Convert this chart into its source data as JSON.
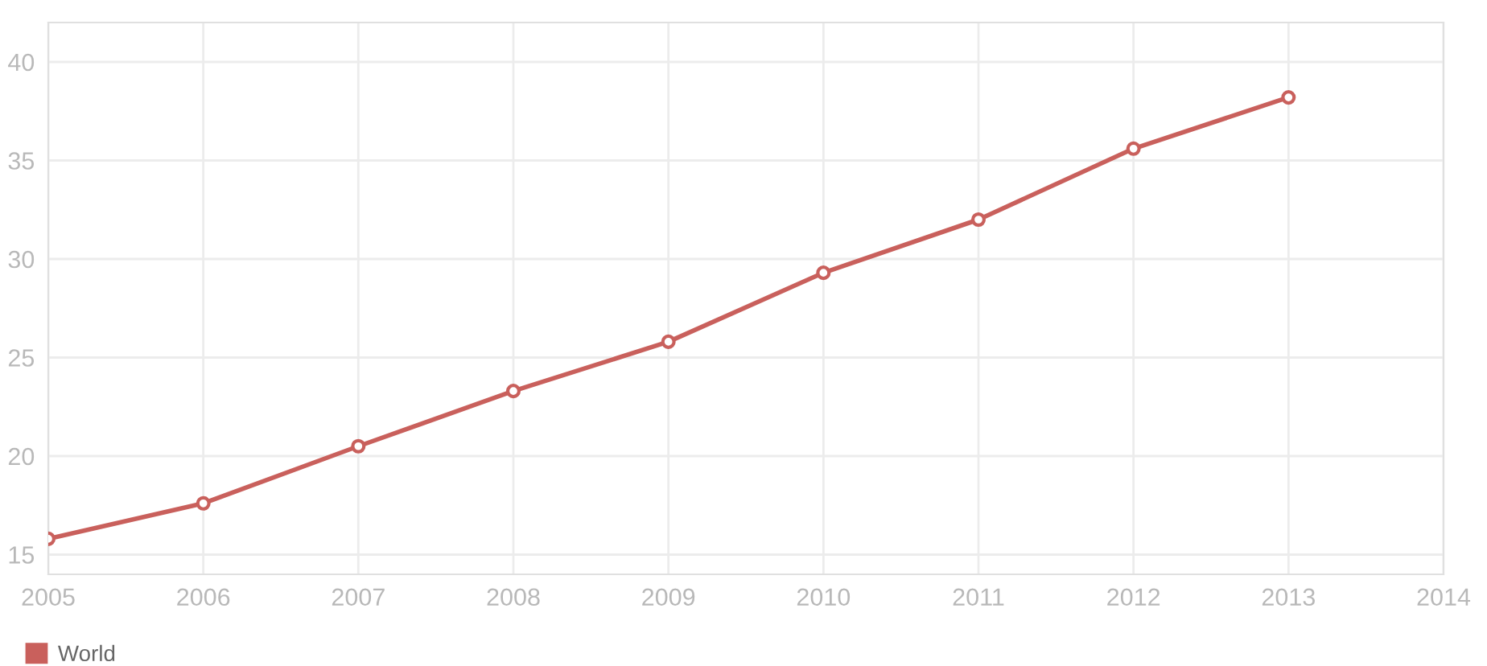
{
  "chart_data": {
    "type": "line",
    "x": [
      2005,
      2006,
      2007,
      2008,
      2009,
      2010,
      2011,
      2012,
      2013
    ],
    "series": [
      {
        "name": "World",
        "color": "#c9605c",
        "values": [
          15.8,
          17.6,
          20.5,
          23.3,
          25.8,
          29.3,
          32.0,
          35.6,
          38.2
        ]
      }
    ],
    "xlim": [
      2005,
      2014
    ],
    "xticks": [
      2005,
      2006,
      2007,
      2008,
      2009,
      2010,
      2011,
      2012,
      2013,
      2014
    ],
    "ylim": [
      14,
      42
    ],
    "yticks": [
      15,
      20,
      25,
      30,
      35,
      40
    ],
    "grid": true,
    "legend": "bottom left",
    "marker": "circle",
    "line_style": "solid"
  }
}
